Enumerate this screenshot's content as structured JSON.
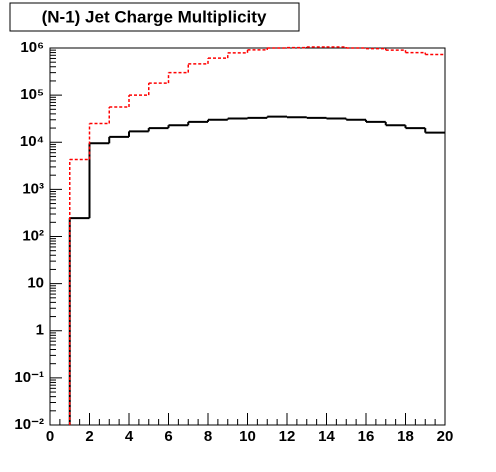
{
  "chart_data": {
    "type": "histogram",
    "title": "(N-1) Jet Charge Multiplicity",
    "bins": [
      0,
      1,
      2,
      3,
      4,
      5,
      6,
      7,
      8,
      9,
      10,
      11,
      12,
      13,
      14,
      15,
      16,
      17,
      18,
      19,
      20
    ],
    "series": [
      {
        "color": "#000000",
        "values": [
          null,
          245,
          9500,
          13000,
          17000,
          20000,
          23000,
          27000,
          30000,
          32000,
          33000,
          35000,
          34000,
          33000,
          32000,
          30000,
          27000,
          23000,
          20000,
          16000
        ]
      },
      {
        "color": "#ff0000",
        "values": [
          null,
          4300,
          25000,
          56000,
          100000,
          180000,
          300000,
          460000,
          610000,
          790000,
          910000,
          1000000,
          1020000,
          1050000,
          1050000,
          1000000,
          970000,
          900000,
          800000,
          730000
        ]
      }
    ],
    "xlim": [
      0,
      20
    ],
    "xticks": [
      0,
      2,
      4,
      6,
      8,
      10,
      12,
      14,
      16,
      18,
      20
    ],
    "ylim": [
      0.01,
      1000000
    ],
    "ylog": true,
    "yticks": [
      {
        "value": 0.01,
        "label": "10⁻²"
      },
      {
        "value": 0.1,
        "label": "10⁻¹"
      },
      1,
      10,
      {
        "value": 100,
        "label": "10²"
      },
      {
        "value": 1000,
        "label": "10³"
      },
      {
        "value": 10000,
        "label": "10⁴"
      },
      {
        "value": 100000,
        "label": "10⁵"
      },
      {
        "value": 1000000,
        "label": "10⁶"
      }
    ]
  }
}
